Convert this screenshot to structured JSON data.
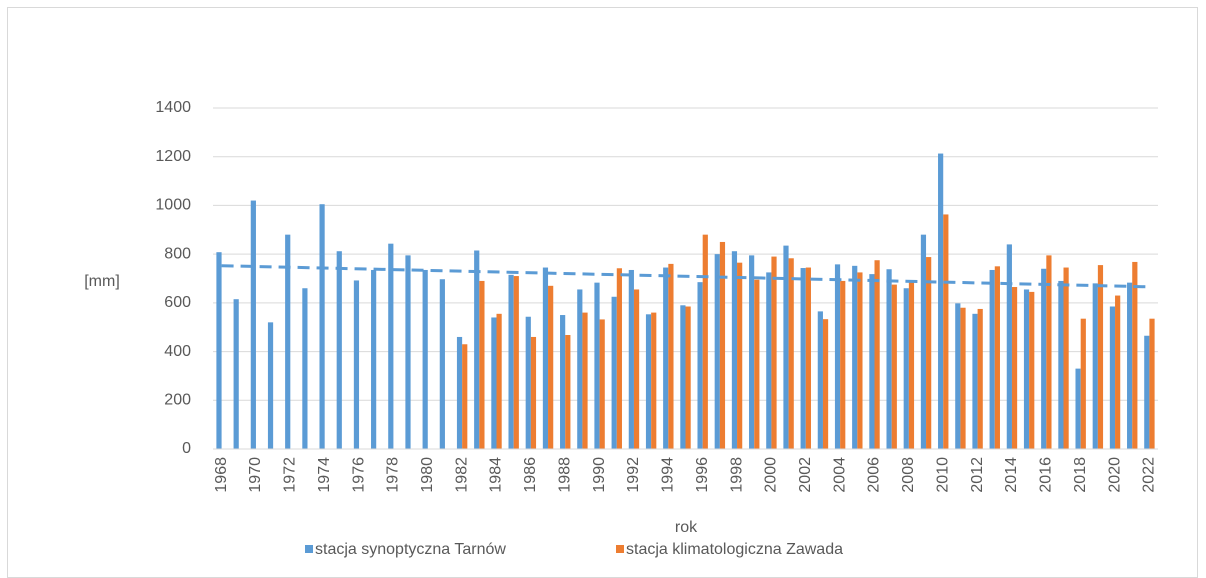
{
  "chart_data": {
    "type": "bar",
    "ylabel": "[mm]",
    "xlabel": "rok",
    "categories": [
      "1968",
      null,
      "1970",
      null,
      "1972",
      null,
      "1974",
      null,
      "1976",
      null,
      "1978",
      null,
      "1980",
      null,
      "1982",
      null,
      "1984",
      null,
      "1986",
      null,
      "1988",
      null,
      "1990",
      null,
      "1992",
      null,
      "1994",
      null,
      "1996",
      null,
      "1998",
      null,
      "2000",
      null,
      "2002",
      null,
      "2004",
      null,
      "2006",
      null,
      "2008",
      null,
      "2010",
      null,
      "2012",
      null,
      "2014",
      null,
      "2016",
      null,
      "2018",
      null,
      "2020",
      null,
      "2022"
    ],
    "series": [
      {
        "name": "stacja synoptyczna Tarnów",
        "color": "#5b9bd5",
        "values": [
          808,
          615,
          1020,
          520,
          880,
          660,
          1005,
          812,
          692,
          735,
          843,
          795,
          735,
          697,
          460,
          815,
          540,
          715,
          543,
          745,
          550,
          655,
          683,
          625,
          735,
          553,
          745,
          590,
          685,
          800,
          812,
          795,
          725,
          835,
          743,
          565,
          758,
          752,
          718,
          738,
          660,
          880,
          1213,
          598,
          555,
          735,
          840,
          655,
          740,
          690,
          330,
          680,
          585,
          683,
          465
        ]
      },
      {
        "name": "stacja klimatologiczna Zawada",
        "color": "#ed7d31",
        "values": [
          null,
          null,
          null,
          null,
          null,
          null,
          null,
          null,
          null,
          null,
          null,
          null,
          null,
          null,
          430,
          690,
          555,
          710,
          460,
          670,
          468,
          560,
          532,
          742,
          655,
          560,
          760,
          585,
          880,
          850,
          765,
          695,
          790,
          783,
          745,
          533,
          690,
          725,
          775,
          675,
          690,
          788,
          963,
          580,
          575,
          750,
          665,
          645,
          795,
          745,
          535,
          755,
          630,
          768,
          535
        ]
      }
    ],
    "trendline": true,
    "ylim": [
      0,
      1400
    ],
    "yticks": [
      0,
      200,
      400,
      600,
      800,
      1000,
      1200,
      1400
    ],
    "grid": true,
    "legend": "bottom"
  }
}
